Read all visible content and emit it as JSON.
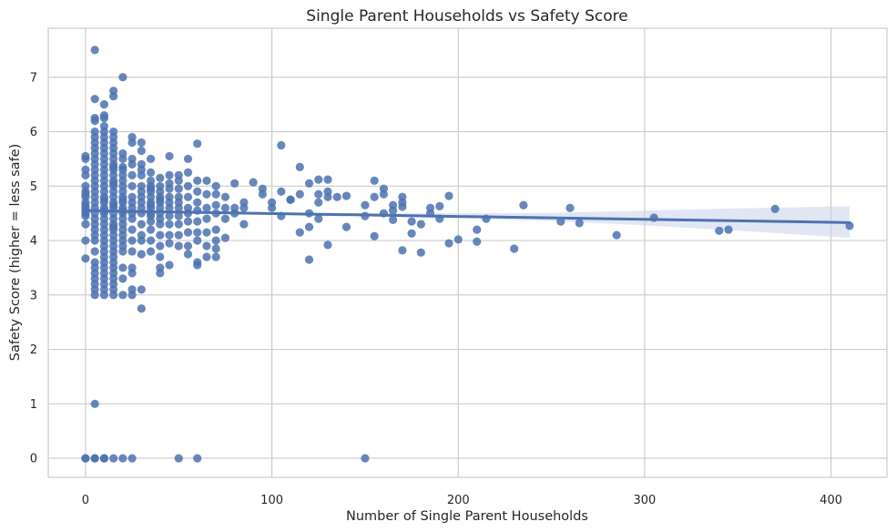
{
  "chart_data": {
    "type": "scatter",
    "title": "Single Parent Households vs Safety Score",
    "xlabel": "Number of Single Parent Households",
    "ylabel": "Safety Score (higher = less safe)",
    "xlim": [
      -20,
      430
    ],
    "ylim": [
      -0.35,
      7.9
    ],
    "xticks": [
      0,
      100,
      200,
      300,
      400
    ],
    "yticks": [
      0,
      1,
      2,
      3,
      4,
      5,
      6,
      7
    ],
    "grid": true,
    "point_color": "#4c72b0",
    "line_color": "#4c72b0",
    "band_color": "#c7d3ea",
    "regression": {
      "x": [
        0,
        410
      ],
      "y": [
        4.55,
        4.33
      ]
    },
    "confidence_band": {
      "x": [
        0,
        50,
        100,
        150,
        200,
        250,
        300,
        350,
        410
      ],
      "upper": [
        4.59,
        4.55,
        4.52,
        4.5,
        4.5,
        4.51,
        4.55,
        4.59,
        4.63
      ],
      "lower": [
        4.51,
        4.49,
        4.48,
        4.45,
        4.41,
        4.36,
        4.28,
        4.18,
        4.05
      ]
    },
    "points": {
      "x": [
        0,
        0,
        0,
        0,
        0,
        0,
        0,
        0,
        0,
        0,
        0,
        0,
        0,
        0,
        0,
        0,
        0,
        0,
        0,
        5,
        5,
        5,
        5,
        5,
        5,
        5,
        5,
        5,
        5,
        5,
        5,
        5,
        5,
        5,
        5,
        5,
        5,
        5,
        5,
        5,
        5,
        5,
        5,
        5,
        5,
        5,
        5,
        5,
        5,
        5,
        5,
        5,
        5,
        5,
        5,
        10,
        10,
        10,
        10,
        10,
        10,
        10,
        10,
        10,
        10,
        10,
        10,
        10,
        10,
        10,
        10,
        10,
        10,
        10,
        10,
        10,
        10,
        10,
        10,
        10,
        10,
        10,
        10,
        10,
        10,
        10,
        10,
        10,
        10,
        10,
        10,
        10,
        10,
        10,
        15,
        15,
        15,
        15,
        15,
        15,
        15,
        15,
        15,
        15,
        15,
        15,
        15,
        15,
        15,
        15,
        15,
        15,
        15,
        15,
        15,
        15,
        15,
        15,
        15,
        15,
        15,
        15,
        15,
        15,
        15,
        15,
        15,
        15,
        15,
        15,
        15,
        15,
        20,
        20,
        20,
        20,
        20,
        20,
        20,
        20,
        20,
        20,
        20,
        20,
        20,
        20,
        20,
        20,
        20,
        20,
        20,
        20,
        20,
        20,
        20,
        20,
        20,
        20,
        25,
        25,
        25,
        25,
        25,
        25,
        25,
        25,
        25,
        25,
        25,
        25,
        25,
        25,
        25,
        25,
        25,
        25,
        25,
        30,
        30,
        30,
        30,
        30,
        30,
        30,
        30,
        30,
        30,
        30,
        30,
        30,
        30,
        30,
        30,
        30,
        35,
        35,
        35,
        35,
        35,
        35,
        35,
        35,
        35,
        35,
        35,
        35,
        35,
        35,
        35,
        35,
        40,
        40,
        40,
        40,
        40,
        40,
        40,
        40,
        40,
        40,
        40,
        40,
        40,
        40,
        40,
        45,
        45,
        45,
        45,
        45,
        45,
        45,
        45,
        45,
        45,
        45,
        45,
        50,
        50,
        50,
        50,
        50,
        50,
        50,
        50,
        50,
        50,
        50,
        55,
        55,
        55,
        55,
        55,
        55,
        55,
        55,
        55,
        55,
        60,
        60,
        60,
        60,
        60,
        60,
        60,
        60,
        60,
        60,
        60,
        65,
        65,
        65,
        65,
        65,
        65,
        65,
        70,
        70,
        70,
        70,
        70,
        70,
        70,
        70,
        75,
        75,
        75,
        75,
        80,
        80,
        80,
        85,
        85,
        85,
        90,
        95,
        95,
        100,
        100,
        105,
        105,
        105,
        110,
        110,
        115,
        115,
        115,
        120,
        120,
        120,
        120,
        125,
        125,
        125,
        125,
        130,
        130,
        130,
        130,
        135,
        140,
        140,
        150,
        150,
        150,
        155,
        155,
        155,
        160,
        160,
        160,
        165,
        165,
        165,
        170,
        170,
        170,
        170,
        175,
        175,
        180,
        180,
        185,
        185,
        190,
        190,
        195,
        195,
        200,
        210,
        210,
        215,
        230,
        235,
        255,
        260,
        265,
        285,
        305,
        340,
        345,
        370,
        410
      ],
      "y": [
        0,
        0,
        3.67,
        4.0,
        4.3,
        4.5,
        4.55,
        4.6,
        4.7,
        4.8,
        4.9,
        5.0,
        5.2,
        5.3,
        5.5,
        5.55,
        4.65,
        4.85,
        4.45,
        0,
        0,
        1.0,
        3.0,
        3.2,
        3.4,
        3.5,
        3.6,
        3.8,
        4.0,
        4.2,
        4.4,
        4.5,
        4.6,
        4.7,
        4.8,
        4.9,
        5.0,
        5.1,
        5.2,
        5.3,
        5.5,
        5.6,
        5.7,
        5.8,
        6.0,
        6.6,
        7.5,
        3.1,
        3.3,
        4.1,
        4.3,
        5.4,
        5.9,
        6.2,
        6.25,
        0,
        0,
        3.0,
        3.1,
        3.2,
        3.3,
        3.5,
        3.6,
        3.7,
        3.8,
        3.9,
        4.0,
        4.1,
        4.2,
        4.3,
        4.4,
        4.5,
        4.6,
        4.7,
        4.8,
        4.9,
        5.0,
        5.1,
        5.2,
        5.3,
        5.4,
        5.5,
        5.6,
        5.7,
        5.8,
        5.9,
        6.0,
        6.1,
        6.25,
        6.3,
        6.5,
        3.4,
        4.55,
        4.75,
        0,
        3.0,
        3.1,
        3.2,
        3.3,
        3.5,
        3.6,
        3.7,
        3.8,
        4.0,
        4.1,
        4.2,
        4.3,
        4.4,
        4.5,
        4.6,
        4.7,
        4.8,
        4.9,
        5.0,
        5.1,
        5.2,
        5.3,
        5.4,
        5.5,
        5.6,
        5.7,
        5.8,
        5.9,
        6.0,
        6.65,
        6.75,
        3.4,
        3.9,
        4.25,
        4.65,
        5.05,
        5.35,
        0,
        3.0,
        3.3,
        3.5,
        3.8,
        3.9,
        4.0,
        4.1,
        4.2,
        4.3,
        4.4,
        4.5,
        4.6,
        4.7,
        4.8,
        4.9,
        5.0,
        5.1,
        5.2,
        5.3,
        5.5,
        5.6,
        7.0,
        4.55,
        4.75,
        5.35,
        0,
        3.0,
        3.1,
        3.4,
        3.5,
        3.8,
        4.0,
        4.2,
        4.4,
        4.5,
        4.6,
        4.7,
        4.8,
        5.0,
        5.2,
        5.4,
        5.5,
        5.8,
        5.9,
        2.75,
        3.1,
        3.75,
        4.0,
        4.1,
        4.3,
        4.5,
        4.6,
        4.7,
        4.8,
        4.9,
        5.0,
        5.2,
        5.3,
        5.4,
        5.65,
        5.8,
        3.8,
        4.0,
        4.2,
        4.35,
        4.5,
        4.6,
        4.7,
        4.8,
        4.9,
        5.0,
        5.1,
        5.25,
        5.5,
        4.45,
        4.65,
        4.95,
        3.4,
        3.5,
        3.7,
        3.9,
        4.1,
        4.3,
        4.5,
        4.6,
        4.7,
        4.8,
        4.9,
        5.0,
        5.15,
        4.4,
        4.75,
        3.55,
        3.95,
        4.1,
        4.3,
        4.45,
        4.6,
        4.7,
        4.8,
        4.95,
        5.05,
        5.2,
        5.55,
        0,
        3.9,
        4.1,
        4.3,
        4.45,
        4.6,
        4.7,
        4.8,
        4.95,
        5.1,
        5.2,
        3.75,
        3.9,
        4.15,
        4.35,
        4.5,
        4.6,
        4.8,
        5.0,
        5.25,
        5.5,
        0,
        3.55,
        3.6,
        4.0,
        4.15,
        4.35,
        4.55,
        4.7,
        4.9,
        5.1,
        5.78,
        3.7,
        3.9,
        4.15,
        4.4,
        4.6,
        4.85,
        5.1,
        3.7,
        3.85,
        4.0,
        4.2,
        4.5,
        4.65,
        4.85,
        5.0,
        4.05,
        4.4,
        4.6,
        4.8,
        4.5,
        4.6,
        5.05,
        4.3,
        4.6,
        4.7,
        5.07,
        4.85,
        4.95,
        4.6,
        4.7,
        4.45,
        4.9,
        5.75,
        4.75,
        4.75,
        4.15,
        4.85,
        5.35,
        3.65,
        4.25,
        4.5,
        5.05,
        4.4,
        4.7,
        4.85,
        5.12,
        3.92,
        4.8,
        4.9,
        5.12,
        4.8,
        4.25,
        4.82,
        0,
        4.45,
        4.65,
        4.08,
        4.8,
        5.1,
        4.5,
        4.85,
        4.95,
        4.38,
        4.55,
        4.65,
        3.82,
        4.62,
        4.7,
        4.8,
        4.13,
        4.35,
        3.78,
        4.3,
        4.5,
        4.6,
        4.4,
        4.63,
        3.95,
        4.82,
        4.02,
        3.98,
        4.2,
        4.4,
        3.85,
        4.65,
        4.35,
        4.6,
        4.32,
        4.1,
        4.42,
        4.18,
        4.2,
        4.58,
        4.27
      ]
    }
  }
}
